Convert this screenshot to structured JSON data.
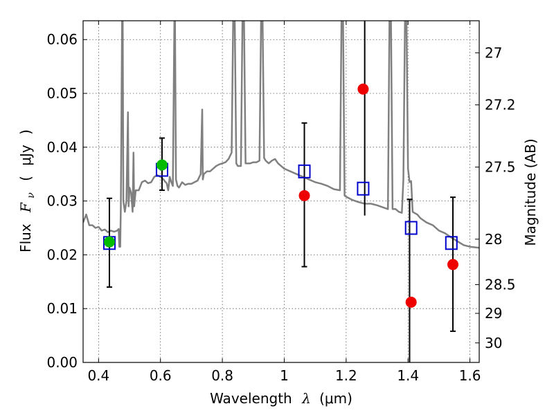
{
  "chart_data": {
    "type": "scatter",
    "title": "",
    "xlabel": "Wavelength  λ (μm)",
    "ylabel": "Flux  Fν (μJy)",
    "ylabel_parts": [
      "Flux",
      "F",
      "ν",
      "(",
      "μJy",
      ")"
    ],
    "xlabel_parts": [
      "Wavelength",
      "λ",
      "(μm)"
    ],
    "y2label": "Magnitude (AB)",
    "xlim": [
      0.35,
      1.63
    ],
    "ylim": [
      0.0,
      0.0635
    ],
    "grid": true,
    "x_ticks": [
      0.4,
      0.6,
      0.8,
      1.0,
      1.2,
      1.4,
      1.6
    ],
    "x_tick_labels": [
      "0.4",
      "0.6",
      "0.8",
      "1",
      "1.2",
      "1.4",
      "1.6"
    ],
    "y_ticks": [
      0.0,
      0.01,
      0.02,
      0.03,
      0.04,
      0.05,
      0.06
    ],
    "y_tick_labels": [
      "0.00",
      "0.01",
      "0.02",
      "0.03",
      "0.04",
      "0.05",
      "0.06"
    ],
    "y2_ticks": [
      27,
      27.2,
      27.5,
      28,
      28.5,
      29,
      30
    ],
    "y2_tick_labels": [
      "27",
      "27.2",
      "27.5",
      "28",
      "28.5",
      "29",
      "30"
    ],
    "colors": {
      "spectrum": "#808080",
      "model_flux": "#0000cc",
      "observed_detection": "#00bb00",
      "observed_red": "#ee0000",
      "errorbar": "#000000",
      "grid": "#555555"
    },
    "series": [
      {
        "kind": "line",
        "points": [
          [
            0.35,
            0.026
          ],
          [
            0.36,
            0.0275
          ],
          [
            0.37,
            0.0255
          ],
          [
            0.38,
            0.0255
          ],
          [
            0.39,
            0.025
          ],
          [
            0.4,
            0.0252
          ],
          [
            0.41,
            0.0245
          ],
          [
            0.42,
            0.0247
          ],
          [
            0.43,
            0.0242
          ],
          [
            0.44,
            0.0245
          ],
          [
            0.45,
            0.0243
          ],
          [
            0.46,
            0.0245
          ],
          [
            0.465,
            0.0248
          ],
          [
            0.467,
            0.0215
          ],
          [
            0.47,
            0.0215
          ],
          [
            0.472,
            0.029
          ],
          [
            0.476,
            0.0635
          ],
          [
            0.478,
            0.0635
          ],
          [
            0.48,
            0.03
          ],
          [
            0.485,
            0.028
          ],
          [
            0.49,
            0.03
          ],
          [
            0.495,
            0.0465
          ],
          [
            0.497,
            0.029
          ],
          [
            0.5,
            0.0325
          ],
          [
            0.505,
            0.0315
          ],
          [
            0.51,
            0.028
          ],
          [
            0.513,
            0.039
          ],
          [
            0.515,
            0.029
          ],
          [
            0.52,
            0.032
          ],
          [
            0.53,
            0.032
          ],
          [
            0.54,
            0.0335
          ],
          [
            0.55,
            0.0338
          ],
          [
            0.56,
            0.0333
          ],
          [
            0.57,
            0.0335
          ],
          [
            0.58,
            0.0345
          ],
          [
            0.59,
            0.0348
          ],
          [
            0.6,
            0.0345
          ],
          [
            0.61,
            0.034
          ],
          [
            0.615,
            0.0336
          ],
          [
            0.62,
            0.0333
          ],
          [
            0.625,
            0.032
          ],
          [
            0.63,
            0.0345
          ],
          [
            0.635,
            0.0335
          ],
          [
            0.64,
            0.0328
          ],
          [
            0.645,
            0.0635
          ],
          [
            0.647,
            0.0635
          ],
          [
            0.65,
            0.034
          ],
          [
            0.655,
            0.0328
          ],
          [
            0.66,
            0.0325
          ],
          [
            0.67,
            0.0335
          ],
          [
            0.68,
            0.033
          ],
          [
            0.69,
            0.0332
          ],
          [
            0.7,
            0.0332
          ],
          [
            0.71,
            0.0335
          ],
          [
            0.72,
            0.0338
          ],
          [
            0.73,
            0.035
          ],
          [
            0.735,
            0.047
          ],
          [
            0.737,
            0.034
          ],
          [
            0.74,
            0.035
          ],
          [
            0.75,
            0.0355
          ],
          [
            0.76,
            0.0355
          ],
          [
            0.77,
            0.036
          ],
          [
            0.78,
            0.0365
          ],
          [
            0.79,
            0.0368
          ],
          [
            0.8,
            0.037
          ],
          [
            0.81,
            0.0372
          ],
          [
            0.82,
            0.0378
          ],
          [
            0.83,
            0.039
          ],
          [
            0.835,
            0.0635
          ],
          [
            0.84,
            0.0635
          ],
          [
            0.845,
            0.037
          ],
          [
            0.85,
            0.0365
          ],
          [
            0.86,
            0.0365
          ],
          [
            0.865,
            0.0635
          ],
          [
            0.87,
            0.0635
          ],
          [
            0.875,
            0.037
          ],
          [
            0.88,
            0.037
          ],
          [
            0.89,
            0.037
          ],
          [
            0.9,
            0.0372
          ],
          [
            0.91,
            0.0372
          ],
          [
            0.92,
            0.0375
          ],
          [
            0.925,
            0.0635
          ],
          [
            0.93,
            0.0635
          ],
          [
            0.935,
            0.038
          ],
          [
            0.94,
            0.0375
          ],
          [
            0.95,
            0.037
          ],
          [
            0.96,
            0.0375
          ],
          [
            0.97,
            0.0378
          ],
          [
            0.98,
            0.037
          ],
          [
            1.0,
            0.036
          ],
          [
            1.02,
            0.0355
          ],
          [
            1.04,
            0.035
          ],
          [
            1.06,
            0.0345
          ],
          [
            1.08,
            0.034
          ],
          [
            1.1,
            0.0335
          ],
          [
            1.12,
            0.0332
          ],
          [
            1.14,
            0.0328
          ],
          [
            1.16,
            0.0322
          ],
          [
            1.18,
            0.032
          ],
          [
            1.185,
            0.0635
          ],
          [
            1.19,
            0.0635
          ],
          [
            1.195,
            0.031
          ],
          [
            1.2,
            0.0308
          ],
          [
            1.22,
            0.0302
          ],
          [
            1.24,
            0.0298
          ],
          [
            1.26,
            0.0295
          ],
          [
            1.28,
            0.0295
          ],
          [
            1.3,
            0.0292
          ],
          [
            1.32,
            0.0288
          ],
          [
            1.335,
            0.0285
          ],
          [
            1.34,
            0.0635
          ],
          [
            1.345,
            0.0635
          ],
          [
            1.35,
            0.0285
          ],
          [
            1.36,
            0.0285
          ],
          [
            1.37,
            0.028
          ],
          [
            1.38,
            0.0278
          ],
          [
            1.385,
            0.034
          ],
          [
            1.39,
            0.0635
          ],
          [
            1.395,
            0.0635
          ],
          [
            1.4,
            0.036
          ],
          [
            1.405,
            0.0335
          ],
          [
            1.41,
            0.0337
          ],
          [
            1.415,
            0.028
          ],
          [
            1.42,
            0.0278
          ],
          [
            1.43,
            0.0275
          ],
          [
            1.44,
            0.0268
          ],
          [
            1.46,
            0.026
          ],
          [
            1.48,
            0.0255
          ],
          [
            1.5,
            0.0245
          ],
          [
            1.52,
            0.024
          ],
          [
            1.54,
            0.0232
          ],
          [
            1.56,
            0.0225
          ],
          [
            1.58,
            0.0218
          ],
          [
            1.6,
            0.0215
          ],
          [
            1.63,
            0.0213
          ]
        ]
      },
      {
        "kind": "model_flux",
        "marker": "open-square",
        "points": [
          [
            0.435,
            0.0222
          ],
          [
            0.605,
            0.0358
          ],
          [
            1.065,
            0.0355
          ],
          [
            1.255,
            0.0323
          ],
          [
            1.41,
            0.025
          ],
          [
            1.54,
            0.0222
          ]
        ]
      },
      {
        "kind": "observed_green",
        "marker": "filled-circle",
        "points": [
          [
            0.435,
            0.0224
          ],
          [
            0.605,
            0.0367
          ]
        ]
      },
      {
        "kind": "observed_red",
        "marker": "filled-circle",
        "points": [
          [
            1.065,
            0.031
          ],
          [
            1.255,
            0.0508
          ],
          [
            1.41,
            0.0112
          ],
          [
            1.545,
            0.0182
          ]
        ]
      },
      {
        "kind": "errorbars",
        "bars": [
          {
            "x": 0.435,
            "low": 0.014,
            "high": 0.0305,
            "cap": true
          },
          {
            "x": 0.605,
            "low": 0.032,
            "high": 0.0417,
            "cap": true
          },
          {
            "x": 1.065,
            "low": 0.0178,
            "high": 0.0445,
            "cap": true
          },
          {
            "x": 1.26,
            "low": 0.0273,
            "high": 0.0635,
            "cap": false
          },
          {
            "x": 1.405,
            "low": 0.0,
            "high": 0.0303,
            "cap": true
          },
          {
            "x": 1.545,
            "low": 0.0058,
            "high": 0.0307,
            "cap": true
          }
        ]
      }
    ]
  }
}
